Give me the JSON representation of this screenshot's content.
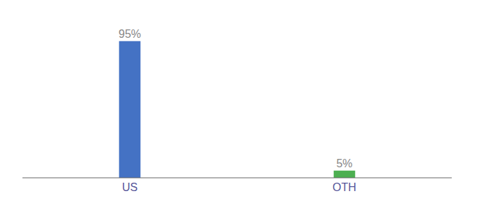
{
  "chart_data": {
    "type": "bar",
    "categories": [
      "US",
      "OTH"
    ],
    "values": [
      95,
      5
    ],
    "colors": [
      "#4472c4",
      "#4caf50"
    ],
    "value_labels": [
      "95%",
      "5%"
    ],
    "data_labels": true,
    "ylim": [
      0,
      108
    ],
    "tick_labels": "x",
    "grid": false
  }
}
